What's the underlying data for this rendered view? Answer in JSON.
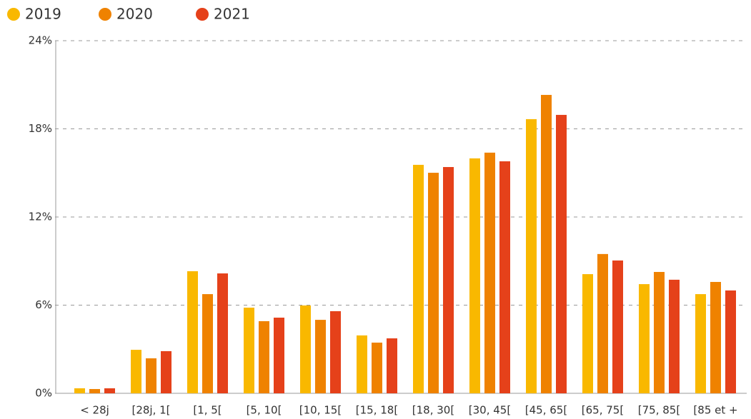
{
  "chart_data": {
    "type": "bar",
    "categories": [
      "< 28j",
      "[28j, 1[",
      "[1, 5[",
      "[5, 10[",
      "[10, 15[",
      "[15, 18[",
      "[18, 30[",
      "[30, 45[",
      "[45, 65[",
      "[65, 75[",
      "[75, 85[",
      "[85 et +"
    ],
    "series": [
      {
        "name": "2019",
        "color": "#f9b800",
        "values": [
          0.34,
          2.96,
          8.31,
          5.83,
          5.98,
          3.94,
          15.55,
          15.99,
          18.66,
          8.11,
          7.43,
          6.75
        ]
      },
      {
        "name": "2020",
        "color": "#ef8200",
        "values": [
          0.29,
          2.38,
          6.75,
          4.91,
          5.0,
          3.45,
          15.01,
          16.38,
          20.31,
          9.48,
          8.26,
          7.58
        ]
      },
      {
        "name": "2021",
        "color": "#e5411a",
        "values": [
          0.34,
          2.87,
          8.16,
          5.15,
          5.59,
          3.74,
          15.4,
          15.79,
          18.95,
          9.04,
          7.73,
          7.0
        ]
      }
    ],
    "ylim": [
      0,
      24
    ],
    "yticks": [
      {
        "value": 0,
        "label": "0%"
      },
      {
        "value": 6,
        "label": "6%"
      },
      {
        "value": 12,
        "label": "12%"
      },
      {
        "value": 18,
        "label": "18%"
      },
      {
        "value": 24,
        "label": "24%"
      }
    ],
    "grid": true,
    "legend": "top-left"
  }
}
